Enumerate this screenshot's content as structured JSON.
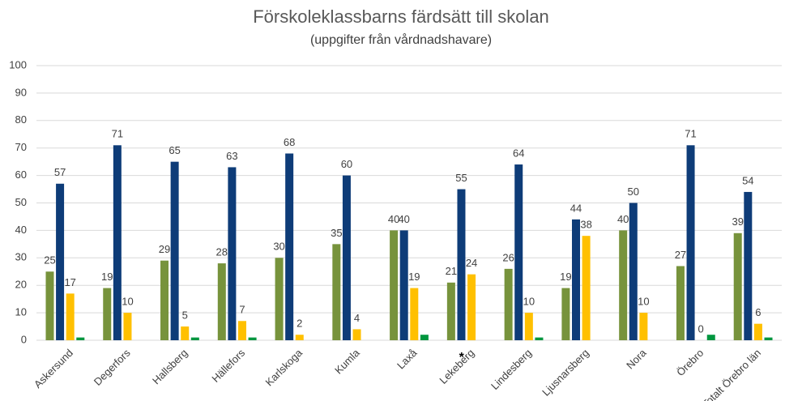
{
  "chart_data": {
    "type": "bar",
    "title": "Förskoleklassbarns färdsätt till skolan",
    "subtitle": "(uppgifter från vårdnadshavare)",
    "categories": [
      "Askersund",
      "Degerfors",
      "Hallsberg",
      "Hällefors",
      "Karlskoga",
      "Kumla",
      "Laxå",
      "Lekeberg",
      "Lindesberg",
      "Ljusnarsberg",
      "Nora",
      "Örebro",
      "Totalt Örebro län"
    ],
    "series": [
      {
        "color": "#77933c",
        "data_labels": true,
        "values": [
          25,
          19,
          29,
          28,
          30,
          35,
          40,
          21,
          26,
          19,
          40,
          27,
          39
        ]
      },
      {
        "color": "#0e3c78",
        "data_labels": true,
        "values": [
          57,
          71,
          65,
          63,
          68,
          60,
          40,
          55,
          64,
          44,
          50,
          71,
          54
        ]
      },
      {
        "color": "#ffc000",
        "data_labels": true,
        "values": [
          17,
          10,
          5,
          7,
          2,
          4,
          19,
          24,
          10,
          38,
          10,
          0,
          6
        ]
      },
      {
        "color": "#00963f",
        "data_labels": false,
        "values": [
          1,
          0,
          1,
          1,
          0,
          0,
          2,
          0,
          1,
          0,
          0,
          2,
          1
        ]
      }
    ],
    "annotation": {
      "text": "*",
      "category": 7
    },
    "ylim": [
      0,
      100
    ],
    "yticks": [
      0,
      10,
      20,
      30,
      40,
      50,
      60,
      70,
      80,
      90,
      100
    ],
    "grid": true
  }
}
